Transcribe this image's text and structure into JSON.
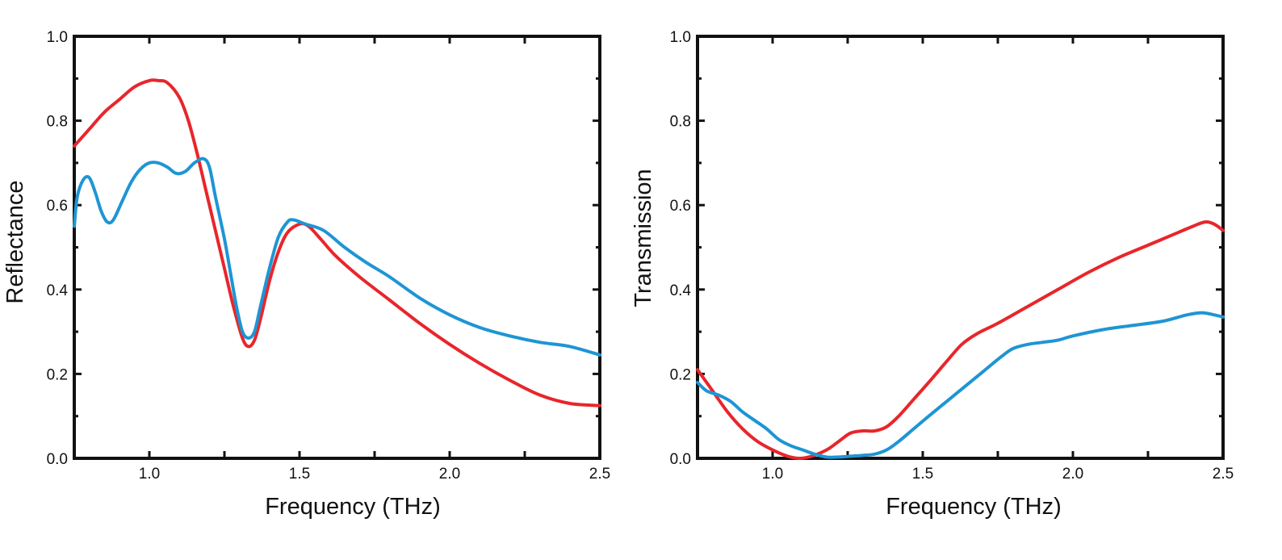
{
  "chart_data": [
    {
      "type": "line",
      "title": "",
      "xlabel": "Frequency (THz)",
      "ylabel": "Reflectance",
      "xlim": [
        0.75,
        2.5
      ],
      "ylim": [
        0.0,
        1.0
      ],
      "xticks": [
        1.0,
        1.5,
        2.0,
        2.5
      ],
      "xtick_labels": [
        "1.0",
        "1.5",
        "2.0",
        "2.5"
      ],
      "yticks": [
        0.0,
        0.2,
        0.4,
        0.6,
        0.8,
        1.0
      ],
      "ytick_labels": [
        "0.0",
        "0.2",
        "0.4",
        "0.6",
        "0.8",
        "1.0"
      ],
      "series": [
        {
          "name": "red",
          "color": "#e8262b",
          "points": [
            [
              0.75,
              0.74
            ],
            [
              0.8,
              0.78
            ],
            [
              0.85,
              0.82
            ],
            [
              0.9,
              0.85
            ],
            [
              0.95,
              0.88
            ],
            [
              1.0,
              0.895
            ],
            [
              1.03,
              0.895
            ],
            [
              1.06,
              0.89
            ],
            [
              1.1,
              0.855
            ],
            [
              1.13,
              0.8
            ],
            [
              1.16,
              0.72
            ],
            [
              1.19,
              0.63
            ],
            [
              1.22,
              0.54
            ],
            [
              1.25,
              0.45
            ],
            [
              1.28,
              0.36
            ],
            [
              1.31,
              0.285
            ],
            [
              1.33,
              0.265
            ],
            [
              1.35,
              0.28
            ],
            [
              1.37,
              0.33
            ],
            [
              1.4,
              0.42
            ],
            [
              1.43,
              0.49
            ],
            [
              1.46,
              0.535
            ],
            [
              1.5,
              0.555
            ],
            [
              1.53,
              0.55
            ],
            [
              1.57,
              0.52
            ],
            [
              1.62,
              0.48
            ],
            [
              1.7,
              0.43
            ],
            [
              1.8,
              0.375
            ],
            [
              1.9,
              0.32
            ],
            [
              2.0,
              0.27
            ],
            [
              2.1,
              0.225
            ],
            [
              2.2,
              0.185
            ],
            [
              2.3,
              0.15
            ],
            [
              2.4,
              0.13
            ],
            [
              2.5,
              0.125
            ]
          ]
        },
        {
          "name": "blue",
          "color": "#1e95d4",
          "points": [
            [
              0.75,
              0.55
            ],
            [
              0.76,
              0.62
            ],
            [
              0.78,
              0.66
            ],
            [
              0.8,
              0.665
            ],
            [
              0.82,
              0.63
            ],
            [
              0.84,
              0.585
            ],
            [
              0.86,
              0.56
            ],
            [
              0.88,
              0.565
            ],
            [
              0.91,
              0.61
            ],
            [
              0.94,
              0.655
            ],
            [
              0.97,
              0.685
            ],
            [
              1.0,
              0.7
            ],
            [
              1.03,
              0.7
            ],
            [
              1.06,
              0.69
            ],
            [
              1.09,
              0.675
            ],
            [
              1.12,
              0.68
            ],
            [
              1.15,
              0.7
            ],
            [
              1.18,
              0.71
            ],
            [
              1.2,
              0.69
            ],
            [
              1.22,
              0.62
            ],
            [
              1.25,
              0.52
            ],
            [
              1.27,
              0.44
            ],
            [
              1.29,
              0.36
            ],
            [
              1.31,
              0.3
            ],
            [
              1.33,
              0.285
            ],
            [
              1.35,
              0.3
            ],
            [
              1.37,
              0.36
            ],
            [
              1.4,
              0.45
            ],
            [
              1.43,
              0.525
            ],
            [
              1.46,
              0.56
            ],
            [
              1.48,
              0.565
            ],
            [
              1.52,
              0.555
            ],
            [
              1.58,
              0.54
            ],
            [
              1.65,
              0.5
            ],
            [
              1.72,
              0.465
            ],
            [
              1.8,
              0.43
            ],
            [
              1.9,
              0.38
            ],
            [
              2.0,
              0.34
            ],
            [
              2.1,
              0.31
            ],
            [
              2.2,
              0.29
            ],
            [
              2.3,
              0.275
            ],
            [
              2.4,
              0.265
            ],
            [
              2.5,
              0.245
            ]
          ]
        }
      ]
    },
    {
      "type": "line",
      "title": "",
      "xlabel": "Frequency (THz)",
      "ylabel": "Transmission",
      "xlim": [
        0.75,
        2.5
      ],
      "ylim": [
        0.0,
        1.0
      ],
      "xticks": [
        1.0,
        1.5,
        2.0,
        2.5
      ],
      "xtick_labels": [
        "1.0",
        "1.5",
        "2.0",
        "2.5"
      ],
      "yticks": [
        0.0,
        0.2,
        0.4,
        0.6,
        0.8,
        1.0
      ],
      "ytick_labels": [
        "0.0",
        "0.2",
        "0.4",
        "0.6",
        "0.8",
        "1.0"
      ],
      "series": [
        {
          "name": "red",
          "color": "#e8262b",
          "points": [
            [
              0.75,
              0.21
            ],
            [
              0.8,
              0.16
            ],
            [
              0.85,
              0.11
            ],
            [
              0.9,
              0.07
            ],
            [
              0.95,
              0.04
            ],
            [
              1.0,
              0.02
            ],
            [
              1.05,
              0.005
            ],
            [
              1.09,
              0.0
            ],
            [
              1.13,
              0.005
            ],
            [
              1.18,
              0.02
            ],
            [
              1.22,
              0.04
            ],
            [
              1.26,
              0.06
            ],
            [
              1.3,
              0.065
            ],
            [
              1.34,
              0.065
            ],
            [
              1.38,
              0.075
            ],
            [
              1.42,
              0.1
            ],
            [
              1.47,
              0.14
            ],
            [
              1.52,
              0.18
            ],
            [
              1.58,
              0.23
            ],
            [
              1.63,
              0.27
            ],
            [
              1.68,
              0.295
            ],
            [
              1.75,
              0.32
            ],
            [
              1.85,
              0.36
            ],
            [
              1.95,
              0.4
            ],
            [
              2.05,
              0.44
            ],
            [
              2.15,
              0.475
            ],
            [
              2.25,
              0.505
            ],
            [
              2.35,
              0.535
            ],
            [
              2.4,
              0.55
            ],
            [
              2.44,
              0.56
            ],
            [
              2.47,
              0.555
            ],
            [
              2.5,
              0.54
            ]
          ]
        },
        {
          "name": "blue",
          "color": "#1e95d4",
          "points": [
            [
              0.75,
              0.18
            ],
            [
              0.78,
              0.16
            ],
            [
              0.82,
              0.15
            ],
            [
              0.86,
              0.135
            ],
            [
              0.9,
              0.11
            ],
            [
              0.94,
              0.09
            ],
            [
              0.98,
              0.07
            ],
            [
              1.02,
              0.045
            ],
            [
              1.06,
              0.03
            ],
            [
              1.1,
              0.02
            ],
            [
              1.14,
              0.01
            ],
            [
              1.18,
              0.003
            ],
            [
              1.22,
              0.003
            ],
            [
              1.26,
              0.005
            ],
            [
              1.3,
              0.007
            ],
            [
              1.34,
              0.01
            ],
            [
              1.38,
              0.02
            ],
            [
              1.42,
              0.04
            ],
            [
              1.47,
              0.07
            ],
            [
              1.52,
              0.1
            ],
            [
              1.58,
              0.135
            ],
            [
              1.64,
              0.17
            ],
            [
              1.7,
              0.205
            ],
            [
              1.76,
              0.24
            ],
            [
              1.8,
              0.26
            ],
            [
              1.85,
              0.27
            ],
            [
              1.9,
              0.275
            ],
            [
              1.95,
              0.28
            ],
            [
              2.0,
              0.29
            ],
            [
              2.1,
              0.305
            ],
            [
              2.2,
              0.315
            ],
            [
              2.3,
              0.325
            ],
            [
              2.38,
              0.34
            ],
            [
              2.43,
              0.345
            ],
            [
              2.47,
              0.34
            ],
            [
              2.5,
              0.335
            ]
          ]
        }
      ]
    }
  ]
}
